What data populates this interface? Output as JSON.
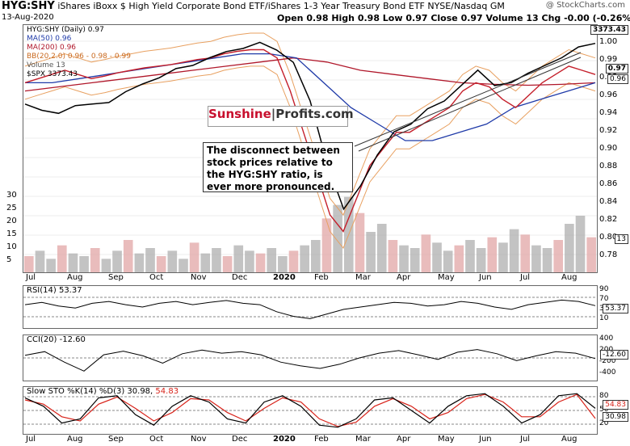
{
  "header": {
    "ticker": "HYG:SHY",
    "description": "iShares iBoxx $ High Yield Corporate Bond ETF/iShares 1-3 Year Treasury Bond ETF  NYSE/Nasdaq GM",
    "date": "13-Aug-2020",
    "ohlc": "Open 0.98  High 0.98  Low 0.97  Close 0.97  Volume 13  Chg -0.00 (-0.26%)",
    "brand": "@ StockCharts.com"
  },
  "legend": {
    "main": "HYG:SHY (Daily) 0.97",
    "ma50": "MA(50) 0.96",
    "ma200": "MA(200) 0.96",
    "bb": "BB(20,2.0) 0.96 - 0.98 - 0.99",
    "volume": "Volume 13",
    "spx": "$SPX 3373.43"
  },
  "callouts": {
    "sunshine_a": "Sunshine",
    "sunshine_b": "Profits.com",
    "note": "The disconnect between stock prices relative to the HYG:SHY ratio, is ever more pronounced."
  },
  "tags": {
    "spx": "3373.43",
    "price": "0.97",
    "ma": "0.96",
    "volume": "13",
    "rsi": "53.37",
    "cci": "-12.60",
    "sto_k": "54.83",
    "sto_d": "30.98"
  },
  "indicators": {
    "rsi_label": "RSI(14) 53.37",
    "cci_label": "CCI(20) -12.60",
    "sto_label": "Slow STO %K(14) %D(3) 30.98,",
    "sto_val2": "54.83"
  },
  "colors": {
    "price": "#000000",
    "ma50": "#1f3aa8",
    "ma200": "#b0172a",
    "bb": "#e8a060",
    "volume_up": "#aaaaaa",
    "volume_down": "#e0a0a0",
    "candle_down": "#cc1f2e",
    "cci_pos": "#4c7a4c",
    "cci_neg": "#7a4a4a",
    "sto_red": "#d8231a",
    "sunshine_red": "#c8102e"
  },
  "chart_data": {
    "type": "line",
    "x_labels": [
      "Jul",
      "Aug",
      "Sep",
      "Oct",
      "Nov",
      "Dec",
      "2020",
      "Feb",
      "Mar",
      "Apr",
      "May",
      "Jun",
      "Jul",
      "Aug"
    ],
    "price_axis": [
      "1.00",
      "0.99",
      "0.98",
      "0.96",
      "0.94",
      "0.92",
      "0.90",
      "0.88",
      "0.86",
      "0.84",
      "0.82",
      "0.80",
      "0.78"
    ],
    "volume_axis": [
      "30",
      "25",
      "20",
      "15",
      "10",
      "5"
    ],
    "rsi_axis": [
      "90",
      "70",
      "30",
      "10"
    ],
    "cci_axis": [
      "400",
      "200",
      "-200",
      "-400"
    ],
    "sto_axis": [
      "80",
      "50",
      "20"
    ],
    "price": [
      0.96,
      0.965,
      0.97,
      0.975,
      0.97,
      0.965,
      0.968,
      0.972,
      0.975,
      0.978,
      0.98,
      0.982,
      0.985,
      0.988,
      0.99,
      0.995,
      0.998,
      1.0,
      1.0,
      0.99,
      0.95,
      0.9,
      0.85,
      0.8,
      0.78,
      0.82,
      0.86,
      0.88,
      0.9,
      0.9,
      0.91,
      0.92,
      0.93,
      0.95,
      0.96,
      0.955,
      0.94,
      0.93,
      0.945,
      0.96,
      0.97,
      0.98,
      0.975,
      0.97
    ],
    "spx": [
      2980,
      2940,
      2920,
      2970,
      2980,
      2990,
      3060,
      3110,
      3150,
      3210,
      3230,
      3280,
      3320,
      3340,
      3380,
      3330,
      3250,
      3000,
      2600,
      2300,
      2450,
      2650,
      2800,
      2850,
      2950,
      3000,
      3100,
      3200,
      3100,
      3120,
      3180,
      3230,
      3280,
      3350,
      3373
    ],
    "ma50": [
      0.96,
      0.96,
      0.965,
      0.97,
      0.975,
      0.98,
      0.985,
      0.99,
      0.995,
      0.995,
      0.99,
      0.96,
      0.93,
      0.91,
      0.89,
      0.89,
      0.9,
      0.91,
      0.93,
      0.94,
      0.95,
      0.96
    ],
    "ma200": [
      0.95,
      0.955,
      0.96,
      0.965,
      0.97,
      0.975,
      0.98,
      0.985,
      0.99,
      0.985,
      0.975,
      0.97,
      0.965,
      0.96,
      0.958,
      0.957,
      0.958,
      0.96
    ],
    "volume": [
      6,
      8,
      5,
      10,
      7,
      6,
      9,
      5,
      8,
      12,
      7,
      9,
      6,
      8,
      5,
      11,
      7,
      9,
      6,
      10,
      8,
      7,
      9,
      6,
      8,
      10,
      12,
      20,
      25,
      28,
      22,
      15,
      18,
      12,
      10,
      9,
      14,
      11,
      8,
      10,
      12,
      9,
      13,
      11,
      16,
      14,
      10,
      9,
      12,
      18,
      21,
      13
    ],
    "rsi": [
      55,
      60,
      52,
      48,
      58,
      62,
      55,
      50,
      58,
      62,
      55,
      60,
      64,
      58,
      55,
      40,
      30,
      25,
      35,
      45,
      50,
      55,
      60,
      58,
      52,
      55,
      62,
      58,
      50,
      45,
      55,
      60,
      65,
      62,
      53
    ],
    "cci": [
      50,
      120,
      -80,
      -250,
      60,
      130,
      40,
      -100,
      80,
      150,
      90,
      120,
      60,
      -80,
      -150,
      -200,
      -120,
      0,
      90,
      140,
      60,
      -30,
      110,
      160,
      80,
      -50,
      40,
      120,
      90,
      -12
    ],
    "sto_k": [
      80,
      60,
      20,
      30,
      80,
      85,
      40,
      15,
      60,
      85,
      70,
      30,
      20,
      70,
      85,
      60,
      15,
      10,
      30,
      75,
      80,
      50,
      20,
      60,
      85,
      90,
      60,
      20,
      40,
      85,
      90,
      55
    ],
    "sto_d": [
      75,
      65,
      35,
      25,
      65,
      82,
      55,
      25,
      45,
      78,
      75,
      45,
      25,
      55,
      80,
      70,
      30,
      12,
      22,
      60,
      78,
      60,
      30,
      45,
      78,
      88,
      70,
      35,
      35,
      70,
      88,
      31
    ]
  }
}
